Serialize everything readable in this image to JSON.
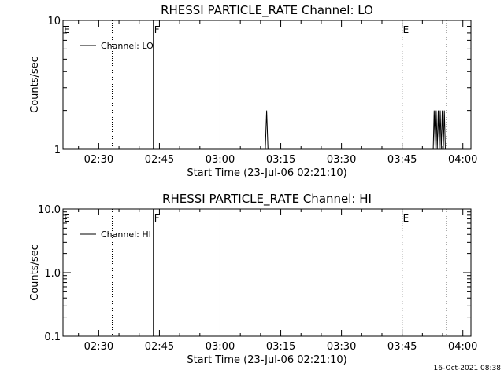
{
  "chart_data": [
    {
      "type": "line",
      "title": "RHESSI PARTICLE_RATE Channel: LO",
      "xlabel": "Start Time (23-Jul-06 02:21:10)",
      "ylabel": "Counts/sec",
      "yscale": "log",
      "ylim": [
        1,
        10
      ],
      "yticks": [
        "1",
        "10"
      ],
      "xlim": [
        "02:21:10",
        "04:02:00"
      ],
      "xticks": [
        "02:30",
        "02:45",
        "03:00",
        "03:15",
        "03:30",
        "03:45",
        "04:00"
      ],
      "legend": {
        "position": "top-left",
        "label": "Channel: LO"
      },
      "markers": [
        {
          "time": "02:21:10",
          "label": "E",
          "style": "dotted"
        },
        {
          "time": "02:33:20",
          "label": "",
          "style": "dotted"
        },
        {
          "time": "02:43:30",
          "label": "F",
          "style": "solid"
        },
        {
          "time": "03:00:00",
          "label": "",
          "style": "solid"
        },
        {
          "time": "03:45:00",
          "label": "E",
          "style": "dotted"
        },
        {
          "time": "03:56:00",
          "label": "",
          "style": "dotted"
        }
      ],
      "series": [
        {
          "name": "Channel: LO",
          "points": [
            [
              "03:11:10",
              1
            ],
            [
              "03:11:30",
              2
            ],
            [
              "03:11:50",
              1
            ],
            [
              "03:52:40",
              1
            ],
            [
              "03:52:55",
              2
            ],
            [
              "03:53:10",
              1
            ],
            [
              "03:53:25",
              2
            ],
            [
              "03:53:40",
              1
            ],
            [
              "03:53:55",
              2
            ],
            [
              "03:54:10",
              1
            ],
            [
              "03:54:25",
              2
            ],
            [
              "03:54:40",
              1
            ],
            [
              "03:54:55",
              2
            ],
            [
              "03:55:10",
              1
            ],
            [
              "03:55:25",
              2
            ],
            [
              "03:55:40",
              1
            ]
          ]
        }
      ]
    },
    {
      "type": "line",
      "title": "RHESSI PARTICLE_RATE Channel: HI",
      "xlabel": "Start Time (23-Jul-06 02:21:10)",
      "ylabel": "Counts/sec",
      "yscale": "log",
      "ylim": [
        0.1,
        10
      ],
      "yticks": [
        "0.1",
        "1.0",
        "10.0"
      ],
      "xlim": [
        "02:21:10",
        "04:02:00"
      ],
      "xticks": [
        "02:30",
        "02:45",
        "03:00",
        "03:15",
        "03:30",
        "03:45",
        "04:00"
      ],
      "legend": {
        "position": "top-left",
        "label": "Channel: HI"
      },
      "markers": [
        {
          "time": "02:21:10",
          "label": "E",
          "style": "dotted"
        },
        {
          "time": "02:33:20",
          "label": "",
          "style": "dotted"
        },
        {
          "time": "02:43:30",
          "label": "F",
          "style": "solid"
        },
        {
          "time": "03:00:00",
          "label": "",
          "style": "solid"
        },
        {
          "time": "03:45:00",
          "label": "E",
          "style": "dotted"
        },
        {
          "time": "03:56:00",
          "label": "",
          "style": "dotted"
        }
      ],
      "series": [
        {
          "name": "Channel: HI",
          "points": []
        }
      ]
    }
  ],
  "footer": {
    "timestamp": "16-Oct-2021 08:38"
  }
}
